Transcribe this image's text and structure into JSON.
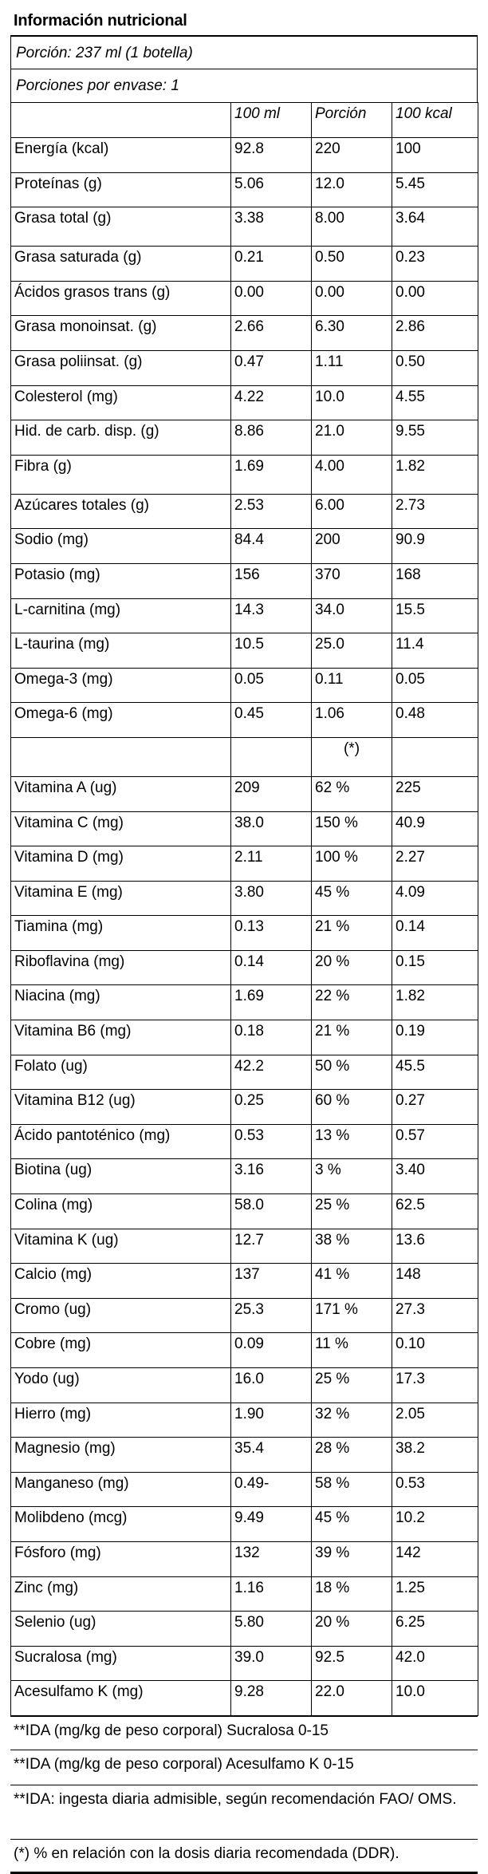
{
  "title": "Información nutricional",
  "serving_size": "Porción: 237 ml (1 botella)",
  "servings_per_container": "Porciones por envase: 1",
  "columns": [
    "",
    "100 ml",
    "Porción",
    "100 kcal"
  ],
  "rows_macros": [
    [
      "Energía (kcal)",
      "92.8",
      "220",
      "100"
    ],
    [
      "Proteínas (g)",
      "5.06",
      "12.0",
      "5.45"
    ],
    [
      "Grasa total (g)",
      "3.38",
      "8.00",
      "3.64"
    ],
    [
      "Grasa saturada (g)",
      "0.21",
      "0.50",
      "0.23"
    ],
    [
      "Ácidos grasos trans (g)",
      "0.00",
      "0.00",
      "0.00"
    ],
    [
      "Grasa monoinsat. (g)",
      "2.66",
      "6.30",
      "2.86"
    ],
    [
      "Grasa poliinsat. (g)",
      "0.47",
      "1.11",
      "0.50"
    ],
    [
      "Colesterol (mg)",
      "4.22",
      "10.0",
      "4.55"
    ],
    [
      "Hid. de carb. disp. (g)",
      "8.86",
      "21.0",
      "9.55"
    ],
    [
      "Fibra (g)",
      "1.69",
      "4.00",
      "1.82"
    ],
    [
      "Azúcares totales (g)",
      "2.53",
      "6.00",
      "2.73"
    ],
    [
      "Sodio (mg)",
      "84.4",
      "200",
      "90.9"
    ],
    [
      "Potasio (mg)",
      "156",
      "370",
      "168"
    ],
    [
      "L-carnitina (mg)",
      "14.3",
      "34.0",
      "15.5"
    ],
    [
      "L-taurina (mg)",
      "10.5",
      "25.0",
      "11.4"
    ],
    [
      "Omega-3 (mg)",
      "0.05",
      "0.11",
      "0.05"
    ],
    [
      "Omega-6 (mg)",
      "0.45",
      "1.06",
      "0.48"
    ]
  ],
  "percent_marker": "(*)",
  "rows_micros": [
    [
      "Vitamina A (ug)",
      "209",
      "62 %",
      "225"
    ],
    [
      "Vitamina C (mg)",
      "38.0",
      "150 %",
      "40.9"
    ],
    [
      "Vitamina D (mg)",
      "2.11",
      "100 %",
      "2.27"
    ],
    [
      "Vitamina E (mg)",
      "3.80",
      "45 %",
      "4.09"
    ],
    [
      "Tiamina (mg)",
      "0.13",
      "21 %",
      "0.14"
    ],
    [
      "Riboflavina (mg)",
      "0.14",
      "20 %",
      "0.15"
    ],
    [
      "Niacina (mg)",
      "1.69",
      "22 %",
      "1.82"
    ],
    [
      "Vitamina B6 (mg)",
      "0.18",
      "21 %",
      "0.19"
    ],
    [
      "Folato (ug)",
      "42.2",
      "50 %",
      "45.5"
    ],
    [
      "Vitamina B12 (ug)",
      "0.25",
      "60 %",
      "0.27"
    ],
    [
      "Ácido pantoténico (mg)",
      "0.53",
      "13 %",
      "0.57"
    ],
    [
      "Biotina (ug)",
      "3.16",
      "3 %",
      "3.40"
    ],
    [
      "Colina (mg)",
      "58.0",
      "25 %",
      "62.5"
    ],
    [
      "Vitamina K (ug)",
      "12.7",
      "38 %",
      "13.6"
    ],
    [
      "Calcio (mg)",
      "137",
      "41 %",
      "148"
    ],
    [
      "Cromo (ug)",
      "25.3",
      "171 %",
      "27.3"
    ],
    [
      "Cobre (mg)",
      "0.09",
      "11 %",
      "0.10"
    ],
    [
      "Yodo (ug)",
      "16.0",
      "25 %",
      "17.3"
    ],
    [
      "Hierro (mg)",
      "1.90",
      "32 %",
      "2.05"
    ],
    [
      "Magnesio (mg)",
      "35.4",
      "28 %",
      "38.2"
    ],
    [
      "Manganeso (mg)",
      "0.49-",
      "58 %",
      "0.53"
    ],
    [
      "Molibdeno (mcg)",
      "9.49",
      "45 %",
      "10.2"
    ],
    [
      "Fósforo (mg)",
      "132",
      "39 %",
      "142"
    ],
    [
      "Zinc (mg)",
      "1.16",
      "18 %",
      "1.25"
    ],
    [
      "Selenio (ug)",
      "5.80",
      "20 %",
      "6.25"
    ],
    [
      "Sucralosa (mg)",
      "39.0",
      "92.5",
      "42.0"
    ],
    [
      "Acesulfamo K (mg)",
      "9.28",
      "22.0",
      "10.0"
    ]
  ],
  "notes": [
    "**IDA (mg/kg de peso corporal) Sucralosa 0-15",
    "**IDA (mg/kg de peso corporal) Acesulfamo K 0-15",
    "**IDA: ingesta diaria admisible, según recomendación FAO/ OMS.",
    "(*) % en relación con la dosis diaria recomendada (DDR)."
  ]
}
